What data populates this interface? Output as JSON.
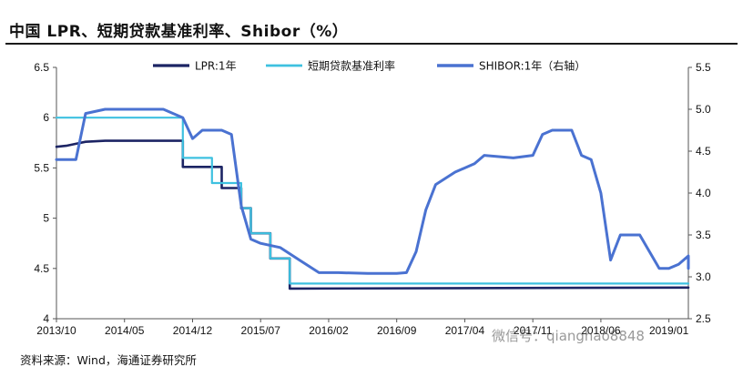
{
  "title": "中国 LPR、短期贷款基准利率、Shibor（%）",
  "source": "资料来源：Wind，海通证券研究所",
  "watermark": "微信号：qianghao8848",
  "colors": {
    "lpr": "#1c2464",
    "short_loan": "#3ec1e0",
    "shibor": "#4a72d1"
  },
  "chart_data": {
    "type": "line",
    "title": "中国 LPR、短期贷款基准利率、Shibor（%）",
    "x_tick_labels": [
      "2013/10",
      "2014/05",
      "2014/12",
      "2015/07",
      "2016/02",
      "2016/09",
      "2017/04",
      "2017/11",
      "2018/06",
      "2019/01"
    ],
    "x_range": [
      "2013/10",
      "2019/03"
    ],
    "left_axis": {
      "ticks": [
        "6.5",
        "6",
        "5.5",
        "5",
        "4.5",
        "4"
      ],
      "ylim": [
        4,
        6.5
      ]
    },
    "right_axis": {
      "ticks": [
        "5.5",
        "5.0",
        "4.5",
        "4.0",
        "3.5",
        "3.0",
        "2.5"
      ],
      "ylim": [
        2.5,
        5.5
      ]
    },
    "legend_position": "top",
    "series": [
      {
        "name": "LPR:1年",
        "axis": "left",
        "step": true,
        "points": [
          [
            "2013/10",
            5.71
          ],
          [
            "2013/11",
            5.72
          ],
          [
            "2013/12",
            5.74
          ],
          [
            "2014/01",
            5.76
          ],
          [
            "2014/03",
            5.77
          ],
          [
            "2014/11",
            5.77
          ],
          [
            "2014/11",
            5.76
          ],
          [
            "2014/11",
            5.51
          ],
          [
            "2015/03",
            5.51
          ],
          [
            "2015/03",
            5.3
          ],
          [
            "2015/05",
            5.3
          ],
          [
            "2015/05",
            5.1
          ],
          [
            "2015/06",
            5.1
          ],
          [
            "2015/06",
            4.85
          ],
          [
            "2015/08",
            4.85
          ],
          [
            "2015/08",
            4.6
          ],
          [
            "2015/10",
            4.6
          ],
          [
            "2015/10",
            4.3
          ],
          [
            "2019/03",
            4.31
          ]
        ]
      },
      {
        "name": "短期贷款基准利率",
        "axis": "left",
        "step": true,
        "points": [
          [
            "2013/10",
            6.0
          ],
          [
            "2014/11",
            6.0
          ],
          [
            "2014/11",
            5.6
          ],
          [
            "2015/02",
            5.6
          ],
          [
            "2015/02",
            5.35
          ],
          [
            "2015/05",
            5.35
          ],
          [
            "2015/05",
            5.1
          ],
          [
            "2015/06",
            5.1
          ],
          [
            "2015/06",
            4.85
          ],
          [
            "2015/08",
            4.85
          ],
          [
            "2015/08",
            4.6
          ],
          [
            "2015/10",
            4.6
          ],
          [
            "2015/10",
            4.35
          ],
          [
            "2019/03",
            4.35
          ]
        ]
      },
      {
        "name": "SHIBOR:1年（右轴）",
        "axis": "right",
        "points": [
          [
            "2013/10",
            4.4
          ],
          [
            "2013/12",
            4.4
          ],
          [
            "2014/01",
            4.95
          ],
          [
            "2014/03",
            5.0
          ],
          [
            "2014/06",
            5.0
          ],
          [
            "2014/09",
            5.0
          ],
          [
            "2014/11",
            4.9
          ],
          [
            "2014/12",
            4.65
          ],
          [
            "2015/01",
            4.75
          ],
          [
            "2015/03",
            4.75
          ],
          [
            "2015/04",
            4.7
          ],
          [
            "2015/05",
            3.85
          ],
          [
            "2015/06",
            3.45
          ],
          [
            "2015/07",
            3.4
          ],
          [
            "2015/09",
            3.35
          ],
          [
            "2015/11",
            3.2
          ],
          [
            "2016/01",
            3.05
          ],
          [
            "2016/03",
            3.05
          ],
          [
            "2016/06",
            3.04
          ],
          [
            "2016/09",
            3.04
          ],
          [
            "2016/10",
            3.05
          ],
          [
            "2016/11",
            3.3
          ],
          [
            "2016/12",
            3.8
          ],
          [
            "2017/01",
            4.1
          ],
          [
            "2017/03",
            4.25
          ],
          [
            "2017/05",
            4.35
          ],
          [
            "2017/06",
            4.45
          ],
          [
            "2017/09",
            4.42
          ],
          [
            "2017/11",
            4.45
          ],
          [
            "2017/12",
            4.7
          ],
          [
            "2018/01",
            4.75
          ],
          [
            "2018/03",
            4.75
          ],
          [
            "2018/04",
            4.45
          ],
          [
            "2018/05",
            4.4
          ],
          [
            "2018/06",
            4.0
          ],
          [
            "2018/07",
            3.2
          ],
          [
            "2018/08",
            3.5
          ],
          [
            "2018/10",
            3.5
          ],
          [
            "2018/11",
            3.3
          ],
          [
            "2018/12",
            3.1
          ],
          [
            "2019/01",
            3.1
          ],
          [
            "2019/02",
            3.15
          ],
          [
            "2019/03",
            3.25
          ],
          [
            "2019/03",
            3.1
          ]
        ]
      }
    ]
  }
}
